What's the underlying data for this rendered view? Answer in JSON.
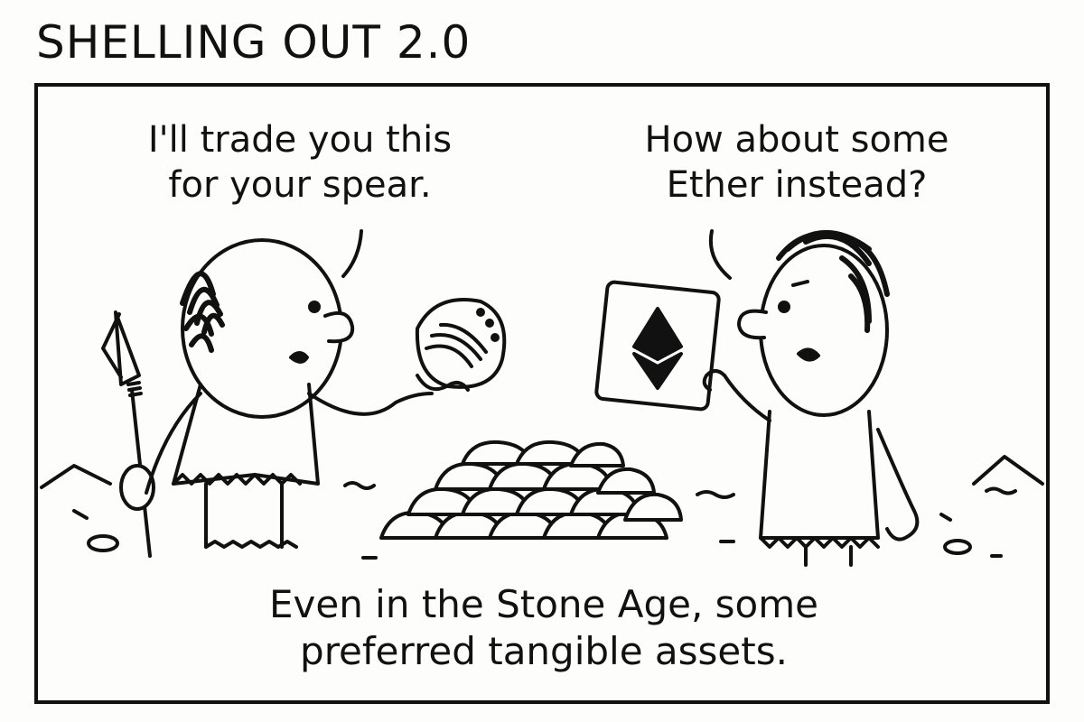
{
  "comic": {
    "title": "SHELLING OUT 2.0",
    "speech_left": {
      "line1": "I'll trade you this",
      "line2": "for your spear."
    },
    "speech_right": {
      "line1": "How about some",
      "line2": "Ether instead?"
    },
    "caption": {
      "line1": "Even in the Stone Age, some",
      "line2": "preferred tangible assets."
    }
  },
  "icons": [
    "spear-icon",
    "shell-icon",
    "ether-card-icon",
    "stone-pile-icon"
  ],
  "colors": {
    "ink": "#111111",
    "paper": "#fdfdfb"
  }
}
